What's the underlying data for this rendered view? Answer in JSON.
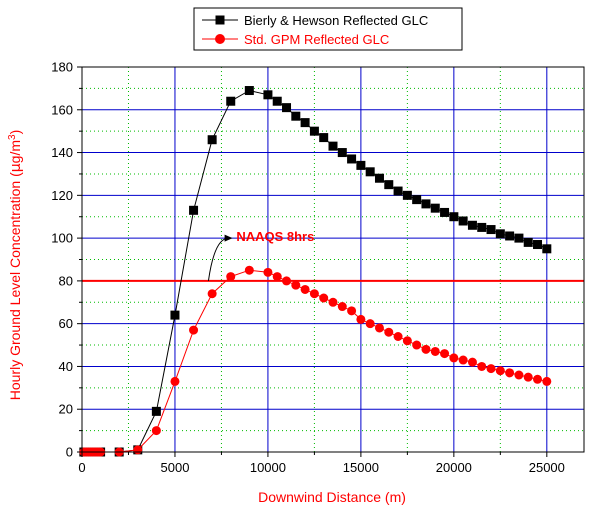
{
  "chart_data": {
    "type": "line",
    "xlabel": "Downwind Distance (m)",
    "ylabel_pre": "Hourly Ground Level Concentration (",
    "ylabel_mu": "μ",
    "ylabel_unit": "g/m",
    "ylabel_sup": "3",
    "ylabel_post": ")",
    "xlim": [
      0,
      27000
    ],
    "ylim": [
      0,
      180
    ],
    "xticks": [
      0,
      5000,
      10000,
      15000,
      20000,
      25000
    ],
    "yticks": [
      0,
      20,
      40,
      60,
      80,
      100,
      120,
      140,
      160,
      180
    ],
    "minor_x_step": 2500,
    "grid": true,
    "legend_position": "top-center",
    "colors": {
      "black_series": "#000000",
      "red_series": "#ff0000",
      "major_grid": "#0000cc",
      "minor_grid": "#00bb00",
      "threshold": "#ff0000",
      "xlabel": "#ff0000",
      "ylabel": "#ff0000"
    },
    "series": [
      {
        "name": "Bierly & Hewson Reflected GLC",
        "marker": "square",
        "x": [
          100,
          200,
          300,
          400,
          500,
          600,
          700,
          800,
          900,
          1000,
          2000,
          3000,
          4000,
          5000,
          6000,
          7000,
          8000,
          9000,
          10000,
          10500,
          11000,
          11500,
          12000,
          12500,
          13000,
          13500,
          14000,
          14500,
          15000,
          15500,
          16000,
          16500,
          17000,
          17500,
          18000,
          18500,
          19000,
          19500,
          20000,
          20500,
          21000,
          21500,
          22000,
          22500,
          23000,
          23500,
          24000,
          24500,
          25000
        ],
        "y": [
          0,
          0,
          0,
          0,
          0,
          0,
          0,
          0,
          0,
          0,
          0,
          1,
          19,
          64,
          113,
          146,
          164,
          169,
          167,
          164,
          161,
          157,
          154,
          150,
          147,
          143,
          140,
          137,
          134,
          131,
          128,
          125,
          122,
          120,
          118,
          116,
          114,
          112,
          110,
          108,
          106,
          105,
          104,
          102,
          101,
          100,
          98,
          97,
          95
        ]
      },
      {
        "name": "Std. GPM Reflected GLC",
        "marker": "circle",
        "x": [
          100,
          200,
          300,
          400,
          500,
          600,
          700,
          800,
          900,
          1000,
          2000,
          3000,
          4000,
          5000,
          6000,
          7000,
          8000,
          9000,
          10000,
          10500,
          11000,
          11500,
          12000,
          12500,
          13000,
          13500,
          14000,
          14500,
          15000,
          15500,
          16000,
          16500,
          17000,
          17500,
          18000,
          18500,
          19000,
          19500,
          20000,
          20500,
          21000,
          21500,
          22000,
          22500,
          23000,
          23500,
          24000,
          24500,
          25000
        ],
        "y": [
          0,
          0,
          0,
          0,
          0,
          0,
          0,
          0,
          0,
          0,
          0,
          1,
          10,
          33,
          57,
          74,
          82,
          85,
          84,
          82,
          80,
          78,
          76,
          74,
          72,
          70,
          68,
          66,
          62,
          60,
          58,
          56,
          54,
          52,
          50,
          48,
          47,
          46,
          44,
          43,
          42,
          40,
          39,
          38,
          37,
          36,
          35,
          34,
          33
        ]
      }
    ],
    "threshold": {
      "y": 80,
      "label": "NAAQS 8hrs"
    },
    "annotation": {
      "text": "NAAQS 8hrs",
      "text_x": 8300,
      "text_y": 101,
      "arrow_from": [
        6800,
        80
      ],
      "arrow_to": [
        8100,
        100
      ]
    }
  }
}
